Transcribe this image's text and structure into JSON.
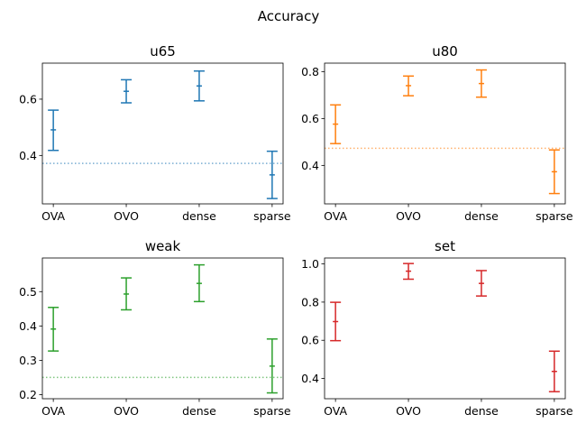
{
  "chart_data": {
    "type": "errorbar",
    "title": "Accuracy",
    "categories": [
      "OVA",
      "OVO",
      "dense",
      "sparse"
    ],
    "panels": [
      {
        "title": "u65",
        "color": "#1f77b4",
        "baseline": 0.372,
        "ylim": [
          0.228,
          0.728
        ],
        "yticks": [
          0.4,
          0.6
        ],
        "ytick_labels": [
          "0.4",
          "0.6"
        ],
        "means": [
          0.491,
          0.628,
          0.647,
          0.331
        ],
        "lower": [
          0.418,
          0.587,
          0.594,
          0.247
        ],
        "upper": [
          0.561,
          0.669,
          0.7,
          0.415
        ]
      },
      {
        "title": "u80",
        "color": "#ff7f0e",
        "baseline": 0.473,
        "ylim": [
          0.236,
          0.836
        ],
        "yticks": [
          0.4,
          0.6,
          0.8
        ],
        "ytick_labels": [
          "0.4",
          "0.6",
          "0.8"
        ],
        "means": [
          0.576,
          0.74,
          0.749,
          0.373
        ],
        "lower": [
          0.493,
          0.697,
          0.691,
          0.28
        ],
        "upper": [
          0.658,
          0.781,
          0.807,
          0.466
        ]
      },
      {
        "title": "weak",
        "color": "#2ca02c",
        "baseline": 0.25,
        "ylim": [
          0.188,
          0.598
        ],
        "yticks": [
          0.2,
          0.3,
          0.4,
          0.5
        ],
        "ytick_labels": [
          "0.2",
          "0.3",
          "0.4",
          "0.5"
        ],
        "means": [
          0.391,
          0.493,
          0.524,
          0.283
        ],
        "lower": [
          0.327,
          0.447,
          0.471,
          0.205
        ],
        "upper": [
          0.454,
          0.54,
          0.578,
          0.362
        ]
      },
      {
        "title": "set",
        "color": "#d62728",
        "baseline": null,
        "ylim": [
          0.294,
          1.031
        ],
        "yticks": [
          0.4,
          0.6,
          0.8,
          1.0
        ],
        "ytick_labels": [
          "0.4",
          "0.6",
          "0.8",
          "1.0"
        ],
        "means": [
          0.698,
          0.962,
          0.898,
          0.437
        ],
        "lower": [
          0.598,
          0.92,
          0.832,
          0.331
        ],
        "upper": [
          0.799,
          1.002,
          0.965,
          0.543
        ]
      }
    ]
  }
}
